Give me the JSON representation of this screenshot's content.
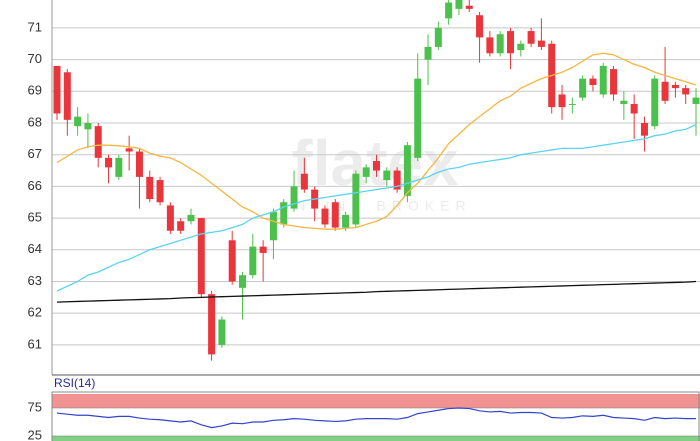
{
  "chart_data": [
    {
      "type": "candlestick",
      "watermark": "flatex",
      "watermark_tagline": "ONLINE BROKER",
      "ylim": [
        60.05,
        71.88
      ],
      "yticks": [
        61,
        62,
        63,
        64,
        65,
        66,
        67,
        68,
        69,
        70,
        71
      ],
      "grid": true,
      "up_color": "#4cc04c",
      "down_color": "#e8363c",
      "open": [
        69.8,
        69.6,
        67.9,
        67.8,
        67.9,
        66.9,
        66.3,
        67.2,
        67.1,
        66.3,
        66.2,
        65.4,
        64.9,
        64.9,
        65.0,
        62.6,
        61.0,
        64.3,
        62.8,
        63.2,
        64.1,
        64.3,
        64.8,
        65.3,
        66.4,
        65.9,
        65.3,
        65.5,
        64.7,
        64.8,
        66.3,
        66.8,
        66.2,
        66.5,
        65.7,
        66.9,
        70.0,
        70.4,
        71.3,
        71.6,
        71.7,
        71.4,
        70.7,
        70.2,
        70.9,
        70.3,
        70.9,
        70.6,
        70.5,
        68.9,
        68.6,
        68.8,
        69.4,
        68.9,
        69.7,
        68.6,
        68.6,
        68.0,
        67.9,
        69.3,
        69.2,
        69.1,
        68.6
      ],
      "high": [
        69.8,
        69.7,
        68.5,
        68.3,
        68.0,
        67.0,
        67.0,
        67.6,
        67.2,
        66.5,
        66.3,
        65.5,
        65.0,
        65.3,
        65.0,
        62.7,
        61.9,
        64.6,
        63.3,
        64.5,
        64.3,
        65.3,
        65.6,
        66.5,
        66.9,
        66.0,
        65.4,
        65.6,
        65.2,
        66.5,
        66.7,
        67.0,
        66.6,
        66.6,
        67.4,
        70.2,
        70.8,
        71.2,
        72.0,
        72.0,
        71.9,
        71.5,
        70.9,
        70.9,
        71.0,
        70.6,
        71.0,
        71.3,
        70.6,
        69.2,
        68.8,
        69.5,
        69.5,
        69.9,
        69.8,
        69.0,
        68.9,
        68.2,
        69.5,
        70.4,
        69.3,
        69.2,
        69.1
      ],
      "low": [
        68.1,
        67.6,
        67.6,
        67.2,
        66.6,
        66.1,
        66.2,
        66.5,
        65.3,
        65.5,
        65.4,
        64.5,
        64.5,
        64.8,
        62.5,
        60.5,
        60.9,
        62.9,
        61.8,
        63.1,
        63.0,
        63.7,
        64.7,
        65.2,
        65.8,
        64.9,
        64.7,
        64.6,
        64.6,
        64.7,
        66.1,
        66.3,
        66.0,
        65.8,
        65.5,
        66.8,
        69.2,
        70.3,
        71.1,
        71.4,
        71.5,
        69.9,
        70.1,
        70.1,
        69.7,
        70.1,
        70.4,
        70.3,
        68.3,
        68.1,
        68.3,
        68.7,
        69.0,
        68.8,
        68.7,
        68.1,
        67.5,
        67.1,
        67.8,
        68.6,
        68.8,
        68.6,
        67.6
      ],
      "close": [
        68.3,
        68.1,
        68.2,
        68.0,
        66.9,
        66.6,
        66.9,
        67.1,
        66.3,
        65.6,
        65.5,
        64.6,
        64.6,
        65.1,
        62.6,
        60.7,
        61.8,
        63.0,
        63.2,
        64.1,
        63.9,
        65.2,
        65.5,
        66.0,
        65.9,
        65.3,
        64.8,
        64.7,
        65.1,
        66.4,
        66.6,
        66.5,
        66.5,
        65.9,
        67.3,
        69.4,
        70.4,
        71.0,
        71.8,
        71.9,
        71.6,
        70.7,
        70.2,
        70.8,
        70.2,
        70.5,
        70.5,
        70.4,
        68.5,
        68.5,
        68.6,
        69.4,
        69.2,
        69.8,
        68.9,
        68.7,
        68.3,
        67.6,
        69.4,
        68.7,
        69.1,
        68.9,
        68.8
      ],
      "series": [
        {
          "color": "#f5b73f",
          "values": [
            66.75,
            66.95,
            67.15,
            67.25,
            67.3,
            67.3,
            67.28,
            67.25,
            67.2,
            67.05,
            66.95,
            66.9,
            66.75,
            66.55,
            66.35,
            66.1,
            65.85,
            65.6,
            65.35,
            65.2,
            65.0,
            64.9,
            64.8,
            64.75,
            64.7,
            64.68,
            64.65,
            64.65,
            64.68,
            64.7,
            64.8,
            64.9,
            65.05,
            65.4,
            65.8,
            66.1,
            66.5,
            66.9,
            67.35,
            67.65,
            67.95,
            68.2,
            68.45,
            68.7,
            68.85,
            69.1,
            69.25,
            69.4,
            69.5,
            69.6,
            69.75,
            69.95,
            70.15,
            70.2,
            70.15,
            70.0,
            69.85,
            69.75,
            69.6,
            69.5,
            69.4,
            69.3,
            69.2
          ]
        },
        {
          "color": "#5cd4ef",
          "values": [
            62.7,
            62.85,
            63.0,
            63.2,
            63.3,
            63.45,
            63.6,
            63.7,
            63.85,
            64.0,
            64.1,
            64.2,
            64.3,
            64.4,
            64.5,
            64.55,
            64.6,
            64.7,
            64.8,
            65.0,
            65.1,
            65.2,
            65.35,
            65.45,
            65.55,
            65.6,
            65.65,
            65.7,
            65.75,
            65.8,
            65.85,
            65.9,
            65.95,
            66.0,
            66.1,
            66.2,
            66.3,
            66.45,
            66.55,
            66.6,
            66.7,
            66.75,
            66.8,
            66.85,
            66.9,
            67.0,
            67.05,
            67.1,
            67.15,
            67.2,
            67.2,
            67.2,
            67.25,
            67.3,
            67.35,
            67.4,
            67.45,
            67.5,
            67.6,
            67.65,
            67.75,
            67.8,
            67.95
          ]
        },
        {
          "color": "#111111",
          "values": [
            62.35,
            62.36,
            62.37,
            62.38,
            62.39,
            62.4,
            62.41,
            62.42,
            62.43,
            62.44,
            62.45,
            62.46,
            62.48,
            62.49,
            62.5,
            62.51,
            62.52,
            62.53,
            62.54,
            62.55,
            62.56,
            62.57,
            62.58,
            62.59,
            62.6,
            62.61,
            62.62,
            62.63,
            62.64,
            62.65,
            62.66,
            62.68,
            62.69,
            62.7,
            62.71,
            62.72,
            62.73,
            62.74,
            62.75,
            62.76,
            62.77,
            62.78,
            62.79,
            62.8,
            62.81,
            62.82,
            62.83,
            62.84,
            62.85,
            62.86,
            62.87,
            62.88,
            62.89,
            62.9,
            62.91,
            62.92,
            62.93,
            62.94,
            62.95,
            62.96,
            62.97,
            62.98,
            63.0
          ]
        }
      ]
    },
    {
      "type": "line",
      "title": "RSI(14)",
      "ylim": [
        0,
        100
      ],
      "yticks": [
        25,
        75
      ],
      "bands": [
        {
          "from": 75,
          "to": 100,
          "color": "#f08080"
        },
        {
          "from": 0,
          "to": 25,
          "color": "#6cc86c"
        }
      ],
      "series": [
        {
          "color": "#3344cc",
          "values": [
            66,
            64,
            62,
            62,
            60,
            58,
            60,
            60,
            57,
            55,
            54,
            52,
            50,
            52,
            45,
            40,
            43,
            48,
            47,
            50,
            50,
            53,
            54,
            56,
            55,
            53,
            52,
            51,
            52,
            55,
            56,
            56,
            56,
            55,
            58,
            65,
            68,
            71,
            74,
            75,
            74,
            70,
            68,
            69,
            66,
            67,
            67,
            66,
            58,
            57,
            58,
            61,
            60,
            62,
            58,
            57,
            56,
            53,
            58,
            56,
            57,
            56,
            56
          ]
        }
      ]
    }
  ]
}
